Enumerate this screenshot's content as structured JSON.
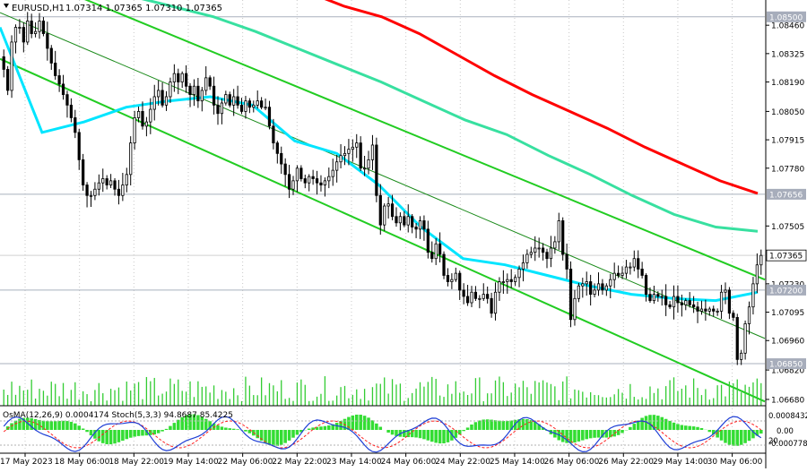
{
  "window": {
    "title": "EURUSD,H1",
    "ohlc": "1.07314 1.07365 1.07310 1.07365"
  },
  "indicator": {
    "label": "OsMA(12,26,9) 0.0004174  Stoch(5,3,3) 94.8687 85.4225",
    "scale_labels": [
      "0.0008432",
      "0.00",
      "20",
      "-0.000778"
    ]
  },
  "colors": {
    "ema_fast": "#00e5ff",
    "ema_mid": "#38e0a0",
    "ema_slow": "#ff0000",
    "channel": "#22cc22",
    "candle": "#000000",
    "osma": "#33dd33",
    "stoch_main": "#1f3fd6",
    "stoch_signal": "#ff2020",
    "hline": "#a9b0bd",
    "price_tag_bg": "#a7adbb"
  },
  "chart_data": {
    "type": "candlestick",
    "symbol": "EURUSD",
    "timeframe": "H1",
    "y_axis_ticks": [
      "1.08460",
      "1.08325",
      "1.08190",
      "1.08050",
      "1.07915",
      "1.07780",
      "1.07505",
      "1.07230",
      "1.07095",
      "1.06960",
      "1.06820",
      "1.06680"
    ],
    "ylim": [
      1.0665,
      1.0858
    ],
    "price_levels": [
      {
        "value": 1.085,
        "label": "1.08500"
      },
      {
        "value": 1.07656,
        "label": "1.07656"
      },
      {
        "value": 1.072,
        "label": "1.07200"
      },
      {
        "value": 1.0685,
        "label": "1.06850"
      }
    ],
    "current_price": {
      "value": 1.07365,
      "label": "1.07365"
    },
    "x_labels": [
      "17 May 2023",
      "18 May 06:00",
      "18 May 22:00",
      "19 May 14:00",
      "22 May 06:00",
      "22 May 22:00",
      "23 May 14:00",
      "24 May 06:00",
      "24 May 22:00",
      "25 May 14:00",
      "26 May 06:00",
      "26 May 22:00",
      "29 May 14:00",
      "30 May 06:00"
    ],
    "closes": [
      1.0825,
      1.0815,
      1.0838,
      1.0845,
      1.0845,
      1.0838,
      1.0848,
      1.0842,
      1.0843,
      1.0848,
      1.0842,
      1.0835,
      1.0828,
      1.0822,
      1.0818,
      1.0813,
      1.0808,
      1.0802,
      1.0795,
      1.0782,
      1.077,
      1.0765,
      1.0765,
      1.0768,
      1.0771,
      1.0773,
      1.077,
      1.0772,
      1.0768,
      1.0765,
      1.077,
      1.0775,
      1.079,
      1.0802,
      1.0805,
      1.0798,
      1.08,
      1.0806,
      1.0812,
      1.0815,
      1.0808,
      1.0812,
      1.0819,
      1.0823,
      1.0819,
      1.0823,
      1.0817,
      1.0813,
      1.0817,
      1.081,
      1.0815,
      1.0821,
      1.0817,
      1.0808,
      1.0804,
      1.0809,
      1.0813,
      1.0808,
      1.0812,
      1.0808,
      1.0805,
      1.081,
      1.0807,
      1.0808,
      1.081,
      1.0807,
      1.0807,
      1.0798,
      1.079,
      1.0785,
      1.078,
      1.0775,
      1.0768,
      1.0772,
      1.0778,
      1.0773,
      1.0771,
      1.0774,
      1.0773,
      1.0771,
      1.077,
      1.0772,
      1.0774,
      1.0777,
      1.0781,
      1.0784,
      1.0785,
      1.0787,
      1.0788,
      1.079,
      1.0778,
      1.0778,
      1.0782,
      1.0789,
      1.0765,
      1.0751,
      1.076,
      1.0761,
      1.0755,
      1.0752,
      1.0755,
      1.0751,
      1.0755,
      1.075,
      1.0749,
      1.0753,
      1.0749,
      1.0738,
      1.0735,
      1.0742,
      1.0737,
      1.0727,
      1.0724,
      1.0725,
      1.0728,
      1.072,
      1.0717,
      1.0714,
      1.0719,
      1.0716,
      1.0716,
      1.0718,
      1.0716,
      1.0709,
      1.0719,
      1.0724,
      1.0724,
      1.0725,
      1.0724,
      1.0726,
      1.073,
      1.0733,
      1.0737,
      1.0738,
      1.074,
      1.074,
      1.0738,
      1.0735,
      1.074,
      1.0743,
      1.0753,
      1.0737,
      1.073,
      1.0706,
      1.0716,
      1.0722,
      1.0723,
      1.0724,
      1.0718,
      1.072,
      1.0723,
      1.072,
      1.0722,
      1.0725,
      1.0728,
      1.0727,
      1.0728,
      1.0731,
      1.0731,
      1.0735,
      1.073,
      1.0727,
      1.0718,
      1.0715,
      1.0718,
      1.0717,
      1.0717,
      1.0713,
      1.0712,
      1.0717,
      1.0714,
      1.0713,
      1.0715,
      1.0713,
      1.0712,
      1.071,
      1.0711,
      1.071,
      1.0711,
      1.071,
      1.071,
      1.0719,
      1.072,
      1.0709,
      1.0707,
      1.0687,
      1.069,
      1.0704,
      1.0712,
      1.0723,
      1.0732,
      1.07365
    ],
    "ema_fast": {
      "start": 1.0845,
      "mid": [
        1.0795,
        1.08,
        1.0807,
        1.081,
        1.0812,
        1.0808,
        1.0791,
        1.0785,
        1.077,
        1.075,
        1.0735,
        1.0732,
        1.0727,
        1.0722,
        1.0718,
        1.0716,
        1.0715,
        1.0719
      ]
    },
    "ema_mid": [
      1.086,
      1.0855,
      1.085,
      1.0843,
      1.0835,
      1.0827,
      1.0819,
      1.081,
      1.0801,
      1.0794,
      1.0784,
      1.0775,
      1.0765,
      1.0756,
      1.075,
      1.0748
    ],
    "ema_slow": [
      1.087,
      1.0862,
      1.0855,
      1.085,
      1.0842,
      1.0832,
      1.0822,
      1.0813,
      1.0805,
      1.0797,
      1.0788,
      1.078,
      1.0772,
      1.0766
    ],
    "channel_lines": [
      {
        "from": 1.0875,
        "to": 1.0725
      },
      {
        "from": 1.0852,
        "to": 1.0697
      },
      {
        "from": 1.083,
        "to": 1.0667
      }
    ]
  }
}
